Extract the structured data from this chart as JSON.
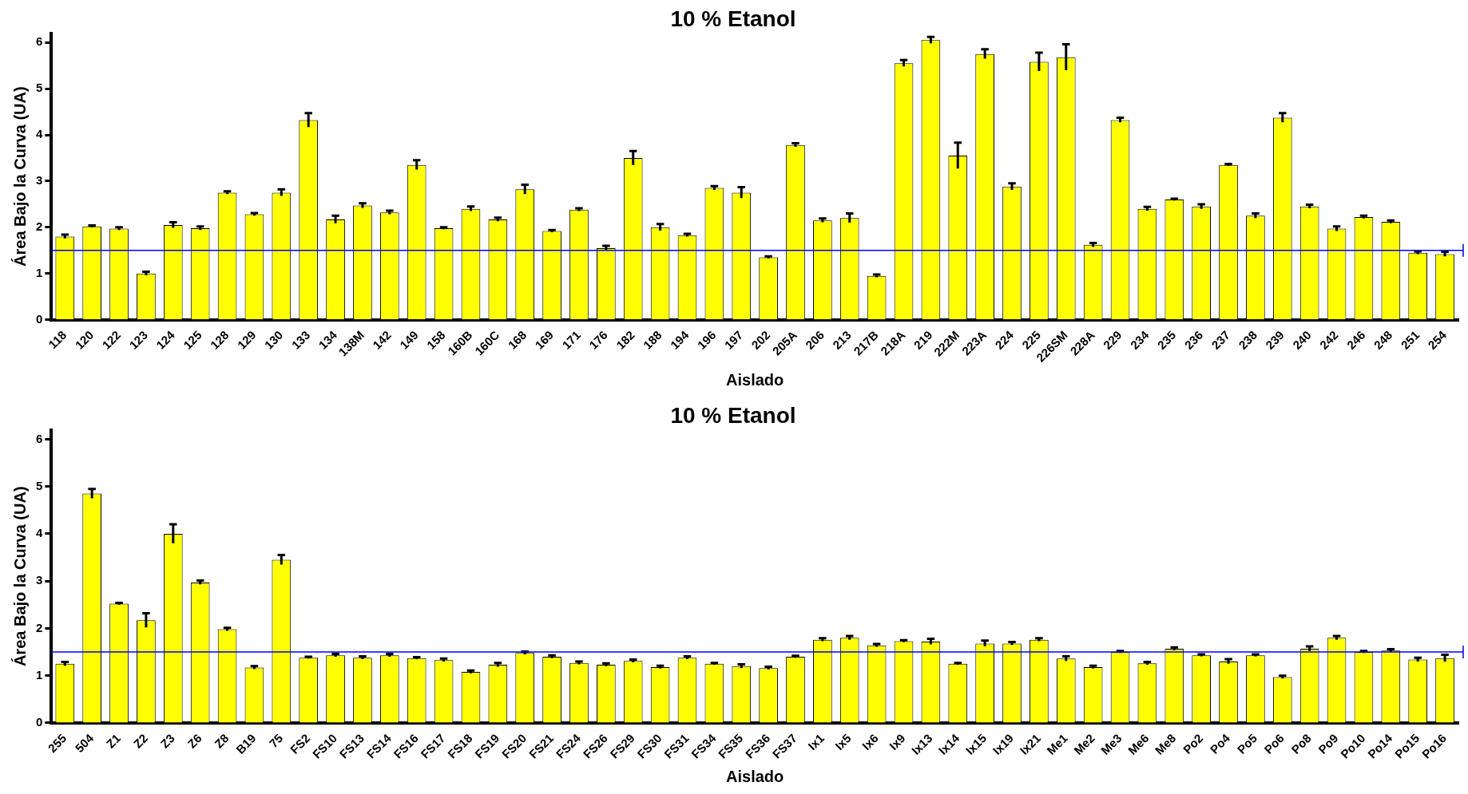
{
  "chart_data": [
    {
      "type": "bar",
      "title": "10 % Etanol",
      "xlabel": "Aislado",
      "ylabel": "Área Bajo la Curva (UA)",
      "categories": [
        "118",
        "120",
        "122",
        "123",
        "124",
        "125",
        "128",
        "129",
        "130",
        "133",
        "134",
        "138M",
        "142",
        "149",
        "158",
        "160B",
        "160C",
        "168",
        "169",
        "171",
        "176",
        "182",
        "188",
        "194",
        "196",
        "197",
        "202",
        "205A",
        "206",
        "213",
        "217B",
        "218A",
        "219",
        "222M",
        "223A",
        "224",
        "225",
        "226SM",
        "228A",
        "229",
        "234",
        "235",
        "236",
        "237",
        "238",
        "239",
        "240",
        "242",
        "246",
        "248",
        "251",
        "254"
      ],
      "values": [
        1.8,
        2.02,
        1.97,
        1.0,
        2.05,
        1.98,
        2.75,
        2.28,
        2.75,
        4.32,
        2.17,
        2.47,
        2.32,
        3.35,
        1.98,
        2.4,
        2.17,
        2.82,
        1.92,
        2.38,
        1.55,
        3.5,
        2.0,
        1.83,
        2.85,
        2.75,
        1.35,
        3.78,
        2.15,
        2.2,
        0.95,
        5.55,
        6.05,
        3.55,
        5.75,
        2.88,
        5.58,
        5.68,
        1.62,
        4.32,
        2.4,
        2.6,
        2.45,
        3.35,
        2.25,
        4.37,
        2.45,
        1.97,
        2.22,
        2.12,
        1.45,
        1.42
      ],
      "errors": [
        0.04,
        0.02,
        0.03,
        0.04,
        0.06,
        0.04,
        0.03,
        0.03,
        0.07,
        0.15,
        0.08,
        0.05,
        0.04,
        0.1,
        0.02,
        0.05,
        0.04,
        0.1,
        0.02,
        0.03,
        0.05,
        0.15,
        0.07,
        0.03,
        0.04,
        0.12,
        0.02,
        0.04,
        0.04,
        0.1,
        0.03,
        0.07,
        0.07,
        0.28,
        0.1,
        0.07,
        0.2,
        0.28,
        0.04,
        0.05,
        0.04,
        0.02,
        0.05,
        0.02,
        0.05,
        0.1,
        0.04,
        0.05,
        0.03,
        0.03,
        0.03,
        0.05
      ],
      "color": "#ffff00",
      "ylim": [
        0,
        6.2
      ],
      "yticks": [
        0,
        1,
        2,
        3,
        4,
        5,
        6
      ],
      "ref_lines": [
        {
          "axis": "y",
          "value": 1.5,
          "color": "#0000ff"
        }
      ],
      "legend": false
    },
    {
      "type": "bar",
      "title": "10 % Etanol",
      "xlabel": "Aislado",
      "ylabel": "Área Bajo la Curva (UA)",
      "categories": [
        "255",
        "504",
        "Z1",
        "Z2",
        "Z3",
        "Z6",
        "Z8",
        "B19",
        "75",
        "FS2",
        "FS10",
        "FS13",
        "FS14",
        "FS16",
        "FS17",
        "FS18",
        "FS19",
        "FS20",
        "FS21",
        "FS24",
        "FS26",
        "FS29",
        "FS30",
        "FS31",
        "FS34",
        "FS35",
        "FS36",
        "FS37",
        "Ix1",
        "Ix5",
        "Ix6",
        "Ix9",
        "Ix13",
        "Ix14",
        "Ix15",
        "Ix19",
        "Ix21",
        "Me1",
        "Me2",
        "Me3",
        "Me6",
        "Me8",
        "Po2",
        "Po4",
        "Po5",
        "Po6",
        "Po8",
        "Po9",
        "Po10",
        "Po14",
        "Po15",
        "Po16"
      ],
      "values": [
        1.25,
        4.85,
        2.52,
        2.17,
        4.0,
        2.97,
        1.98,
        1.17,
        3.45,
        1.38,
        1.43,
        1.38,
        1.43,
        1.37,
        1.33,
        1.08,
        1.23,
        1.48,
        1.4,
        1.27,
        1.23,
        1.31,
        1.18,
        1.38,
        1.25,
        1.2,
        1.16,
        1.4,
        1.76,
        1.8,
        1.64,
        1.73,
        1.72,
        1.25,
        1.68,
        1.68,
        1.76,
        1.36,
        1.18,
        1.5,
        1.26,
        1.57,
        1.43,
        1.3,
        1.43,
        0.97,
        1.57,
        1.8,
        1.5,
        1.53,
        1.34,
        1.37
      ],
      "errors": [
        0.04,
        0.1,
        0.02,
        0.15,
        0.2,
        0.04,
        0.03,
        0.03,
        0.1,
        0.02,
        0.03,
        0.03,
        0.03,
        0.02,
        0.03,
        0.03,
        0.04,
        0.03,
        0.03,
        0.03,
        0.03,
        0.03,
        0.03,
        0.03,
        0.02,
        0.04,
        0.03,
        0.02,
        0.03,
        0.04,
        0.03,
        0.02,
        0.06,
        0.02,
        0.06,
        0.03,
        0.03,
        0.05,
        0.03,
        0.02,
        0.03,
        0.03,
        0.02,
        0.05,
        0.02,
        0.03,
        0.05,
        0.04,
        0.02,
        0.03,
        0.04,
        0.07
      ],
      "color": "#ffff00",
      "ylim": [
        0,
        6.2
      ],
      "yticks": [
        0,
        1,
        2,
        3,
        4,
        5,
        6
      ],
      "ref_lines": [
        {
          "axis": "y",
          "value": 1.5,
          "color": "#0000ff"
        }
      ],
      "legend": false
    }
  ]
}
